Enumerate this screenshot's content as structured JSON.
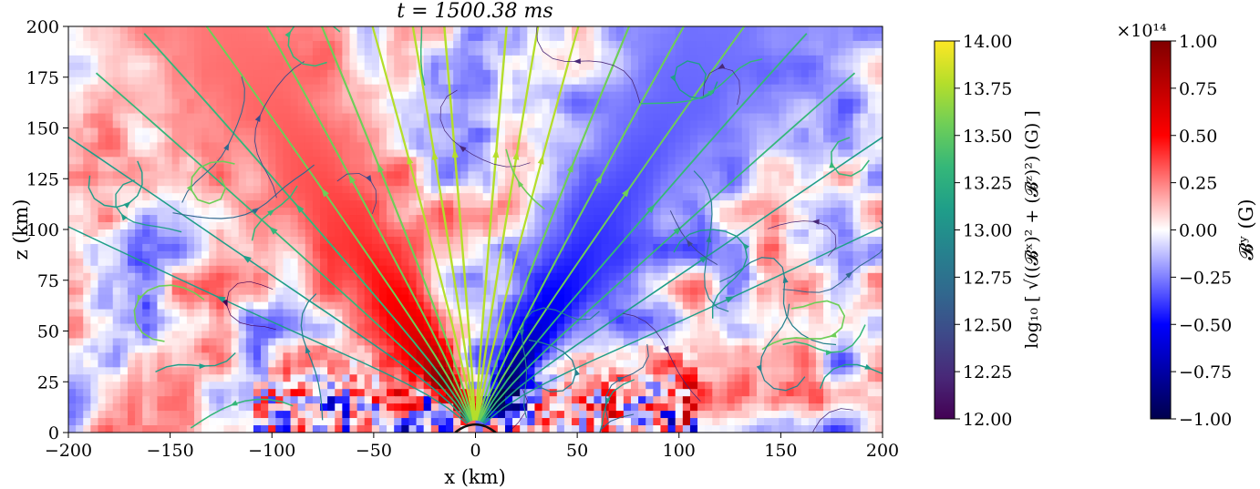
{
  "chart_data": [
    {
      "type": "heatmap",
      "title": "t = 1500.38 ms",
      "xlabel": "x (km)",
      "ylabel": "z (km)",
      "xlim": [
        -200,
        200
      ],
      "ylim": [
        0,
        200
      ],
      "x_ticks": [
        -200,
        -150,
        -100,
        -50,
        0,
        50,
        100,
        150,
        200
      ],
      "y_ticks": [
        0,
        25,
        50,
        75,
        100,
        125,
        150,
        175,
        200
      ],
      "x_tick_labels": [
        "−200",
        "−150",
        "−100",
        "−50",
        "0",
        "50",
        "100",
        "150",
        "200"
      ],
      "y_tick_labels": [
        "0",
        "25",
        "50",
        "75",
        "100",
        "125",
        "150",
        "175",
        "200"
      ],
      "grid": false,
      "overlay": "streamlines colored by log10 |B_poloidal|",
      "colormap": "seismic"
    }
  ],
  "colorbars": [
    {
      "label": "log₁₀ [ √((𝓑ˣ)² + (𝓑ᶻ)²) (G) ]",
      "range": [
        12.0,
        14.0
      ],
      "ticks": [
        "12.00",
        "12.25",
        "12.50",
        "12.75",
        "13.00",
        "13.25",
        "13.50",
        "13.75",
        "14.00"
      ],
      "colormap": "viridis",
      "colors": [
        "#440154",
        "#482878",
        "#3e4989",
        "#31688e",
        "#26828e",
        "#1f9e89",
        "#35b779",
        "#6ece58",
        "#b5de2b",
        "#fde725"
      ]
    },
    {
      "label": "𝓑ʸ (G)",
      "range": [
        -1.0,
        1.0
      ],
      "multiplier": "×10¹⁴",
      "ticks": [
        "−1.00",
        "−0.75",
        "−0.50",
        "−0.25",
        "0.00",
        "0.25",
        "0.50",
        "0.75",
        "1.00"
      ],
      "colormap": "seismic",
      "colors": [
        "#00004c",
        "#0000ff",
        "#ffffff",
        "#ff0000",
        "#800000"
      ]
    }
  ]
}
